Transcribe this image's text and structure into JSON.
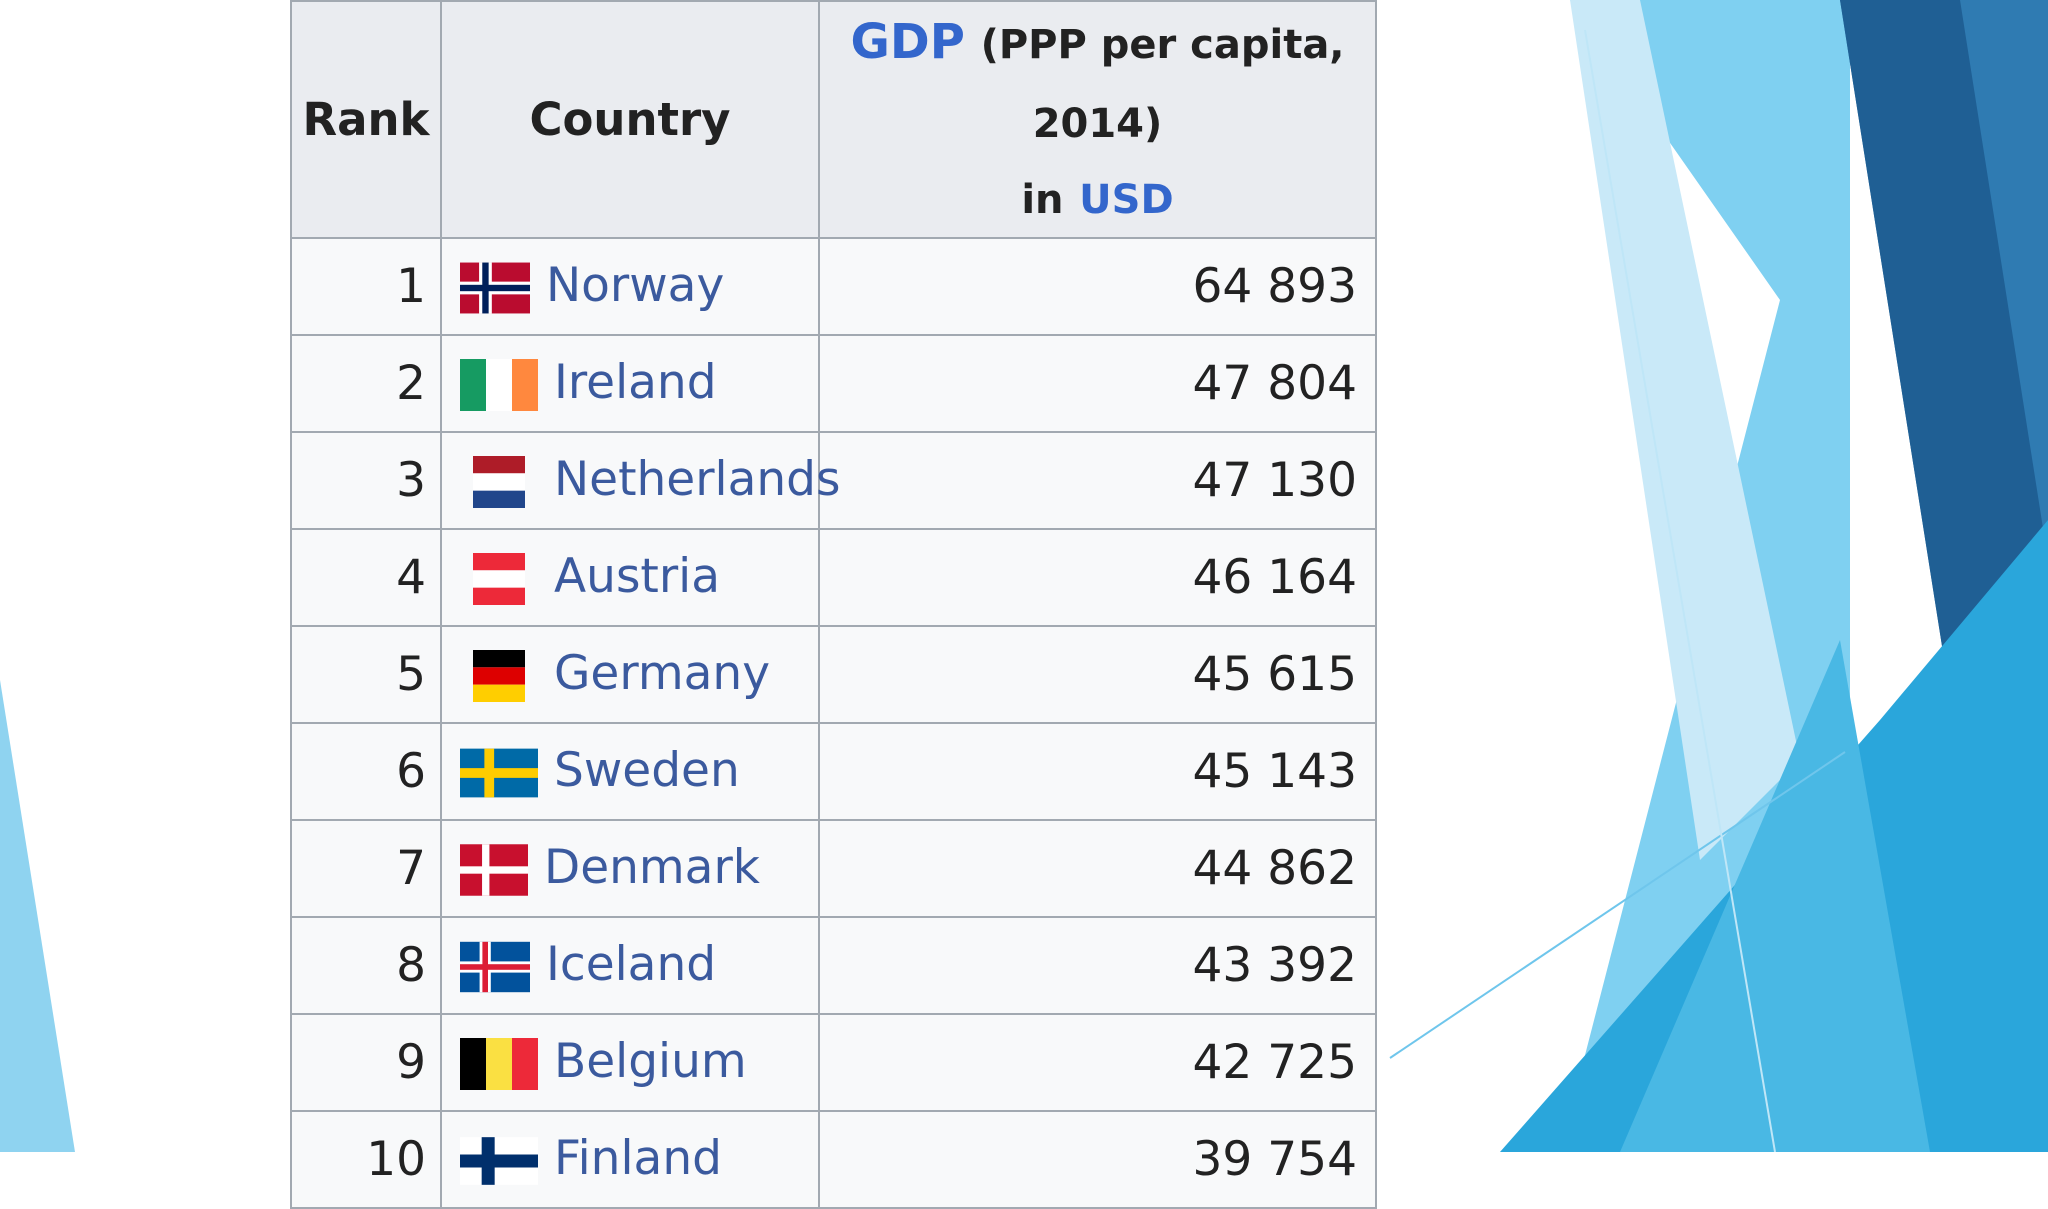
{
  "table": {
    "headers": {
      "rank": "Rank",
      "country": "Country",
      "gdp_link": "GDP",
      "gdp_paren": "(PPP per capita, 2014)",
      "gdp_in": "in",
      "gdp_currency": "USD"
    },
    "rows": [
      {
        "rank": "1",
        "country": "Norway",
        "flag": "norway-flag",
        "gdp": "64 893"
      },
      {
        "rank": "2",
        "country": "Ireland",
        "flag": "ireland-flag",
        "gdp": "47 804"
      },
      {
        "rank": "3",
        "country": "Netherlands",
        "flag": "netherlands-flag",
        "gdp": "47 130"
      },
      {
        "rank": "4",
        "country": "Austria",
        "flag": "austria-flag",
        "gdp": "46 164"
      },
      {
        "rank": "5",
        "country": "Germany",
        "flag": "germany-flag",
        "gdp": "45 615"
      },
      {
        "rank": "6",
        "country": "Sweden",
        "flag": "sweden-flag",
        "gdp": "45 143"
      },
      {
        "rank": "7",
        "country": "Denmark",
        "flag": "denmark-flag",
        "gdp": "44 862"
      },
      {
        "rank": "8",
        "country": "Iceland",
        "flag": "iceland-flag",
        "gdp": "43 392"
      },
      {
        "rank": "9",
        "country": "Belgium",
        "flag": "belgium-flag",
        "gdp": "42 725"
      },
      {
        "rank": "10",
        "country": "Finland",
        "flag": "finland-flag",
        "gdp": "39 754"
      }
    ]
  },
  "colors": {
    "link": "#3366cc",
    "header_bg": "#eaecf0",
    "cell_bg": "#f8f9fa",
    "border": "#a2a9b1",
    "accent_light": "#87cef0",
    "accent_mid": "#29a8de",
    "accent_dark": "#1f5f94"
  }
}
